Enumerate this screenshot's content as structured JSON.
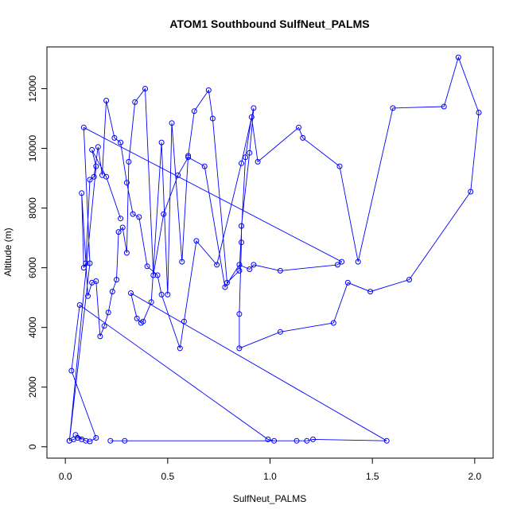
{
  "chart_data": {
    "type": "line",
    "title": "ATOM1 Southbound SulfNeut_PALMS",
    "xlabel": "SulfNeut_PALMS",
    "ylabel": "Altitude (m)",
    "xlim": [
      -0.09,
      2.09
    ],
    "ylim": [
      -380,
      13400
    ],
    "x_ticks": [
      0.0,
      0.5,
      1.0,
      1.5,
      2.0
    ],
    "x_tick_labels": [
      "0.0",
      "0.5",
      "1.0",
      "1.5",
      "2.0"
    ],
    "y_ticks": [
      0,
      2000,
      4000,
      6000,
      8000,
      10000,
      12000
    ],
    "y_tick_labels": [
      "0",
      "2000",
      "4000",
      "6000",
      "8000",
      "10000",
      "12000"
    ],
    "grid": false,
    "legend": "none",
    "marker": "open-circle",
    "color": "#0000ff",
    "series": [
      {
        "x": [
          0.02,
          0.04,
          0.06,
          0.08,
          0.05,
          0.1,
          0.12,
          0.15,
          0.03,
          0.07,
          0.99,
          1.02,
          0.22,
          0.29,
          1.13,
          1.18,
          1.21,
          1.57,
          0.32,
          0.35,
          0.37,
          0.38,
          0.42,
          0.47,
          0.5,
          0.52,
          0.57,
          0.6,
          0.63,
          0.7,
          0.72,
          0.79,
          0.85,
          0.88,
          0.91,
          0.94,
          1.14,
          1.16,
          1.34,
          1.43,
          1.6,
          1.85,
          1.92,
          2.02,
          1.98,
          1.68,
          1.49,
          1.38,
          1.31,
          1.05,
          0.85,
          0.85,
          0.86,
          0.86,
          0.9,
          0.92,
          0.86,
          0.74,
          0.64,
          0.58,
          0.56,
          0.47,
          0.45,
          0.4,
          0.36,
          0.33,
          0.3,
          0.27,
          0.24,
          0.2,
          0.18,
          0.16,
          0.14,
          0.12,
          0.1,
          0.09,
          0.08,
          0.11,
          0.13,
          0.15,
          0.17,
          0.19,
          0.21,
          0.23,
          0.25,
          0.26,
          0.28,
          0.3,
          0.31,
          0.34,
          0.39,
          0.43,
          0.48,
          0.55,
          0.6,
          0.68,
          0.78,
          0.85,
          0.9,
          0.92,
          1.05,
          1.33,
          1.35,
          0.09,
          0.12,
          0.02,
          0.15,
          0.13,
          0.2,
          0.27
        ],
        "y": [
          200,
          250,
          300,
          250,
          400,
          200,
          180,
          300,
          2550,
          4750,
          250,
          200,
          200,
          200,
          200,
          200,
          250,
          200,
          5150,
          4300,
          4150,
          4200,
          4850,
          10200,
          5100,
          10850,
          6200,
          9750,
          11250,
          11950,
          11000,
          5500,
          5900,
          9700,
          11050,
          9550,
          10700,
          10350,
          9400,
          6200,
          11350,
          11400,
          13050,
          11200,
          8550,
          5600,
          5200,
          5500,
          4150,
          3850,
          3300,
          4450,
          6850,
          7400,
          9850,
          11350,
          9500,
          6100,
          6900,
          4200,
          3300,
          5100,
          5750,
          6050,
          7700,
          7800,
          8850,
          10200,
          10350,
          11600,
          9100,
          10050,
          9050,
          8950,
          6150,
          6000,
          8500,
          5050,
          5500,
          5550,
          3700,
          4050,
          4500,
          5200,
          5600,
          7200,
          7350,
          6500,
          9550,
          11550,
          12000,
          5750,
          7800,
          9100,
          9700,
          9400,
          5350,
          6100,
          5950,
          6100,
          5900,
          6100,
          6200,
          10700,
          6150,
          200,
          9400,
          9950,
          9050,
          7650
        ]
      }
    ]
  }
}
